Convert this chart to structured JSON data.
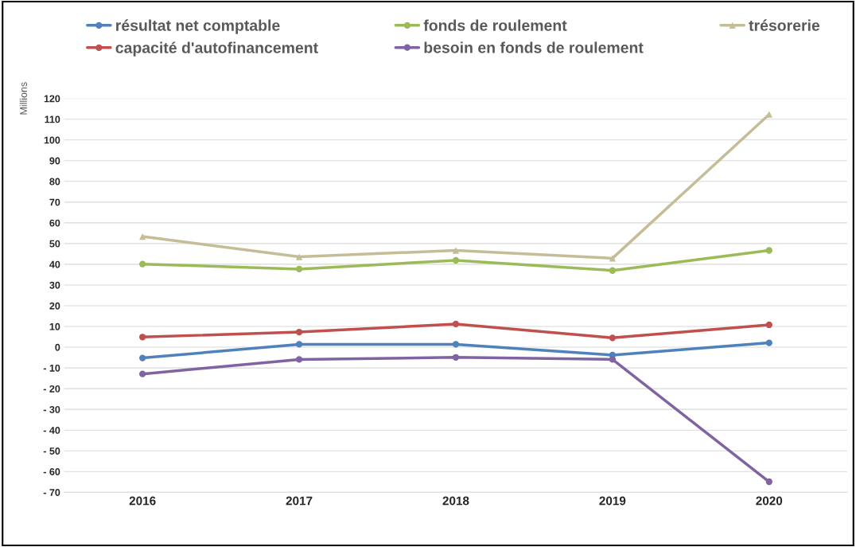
{
  "chart_data": {
    "type": "line",
    "ylabel": "Millions",
    "categories": [
      "2016",
      "2017",
      "2018",
      "2019",
      "2020"
    ],
    "series": [
      {
        "name": "résultat net comptable",
        "color": "#4f81bd",
        "marker": "circle",
        "values": [
          -5.2,
          1.4,
          1.4,
          -3.8,
          2.1
        ]
      },
      {
        "name": "capacité d'autofinancement",
        "color": "#c0504d",
        "marker": "circle",
        "values": [
          4.9,
          7.3,
          11.2,
          4.5,
          10.8
        ]
      },
      {
        "name": "fonds de roulement",
        "color": "#9bbb59",
        "marker": "circle",
        "values": [
          40.1,
          37.7,
          41.9,
          37.0,
          46.7
        ]
      },
      {
        "name": "besoin en fonds de roulement",
        "color": "#8064a2",
        "marker": "circle",
        "values": [
          -12.9,
          -5.9,
          -4.9,
          -5.9,
          -64.9
        ]
      },
      {
        "name": "trésorerie",
        "color": "#c4bd97",
        "marker": "triangle",
        "values": [
          53.4,
          43.6,
          46.7,
          42.9,
          112.3
        ]
      }
    ],
    "ylim": [
      -70,
      120
    ],
    "yticks": [
      {
        "value": -70,
        "label": "- 70"
      },
      {
        "value": -60,
        "label": "- 60"
      },
      {
        "value": -50,
        "label": "- 50"
      },
      {
        "value": -40,
        "label": "- 40"
      },
      {
        "value": -30,
        "label": "- 30"
      },
      {
        "value": -20,
        "label": "- 20"
      },
      {
        "value": -10,
        "label": "- 10"
      },
      0,
      10,
      20,
      30,
      40,
      50,
      60,
      70,
      80,
      90,
      100,
      110,
      120
    ],
    "grid": "y",
    "legend": "top",
    "line_style": "solid"
  }
}
